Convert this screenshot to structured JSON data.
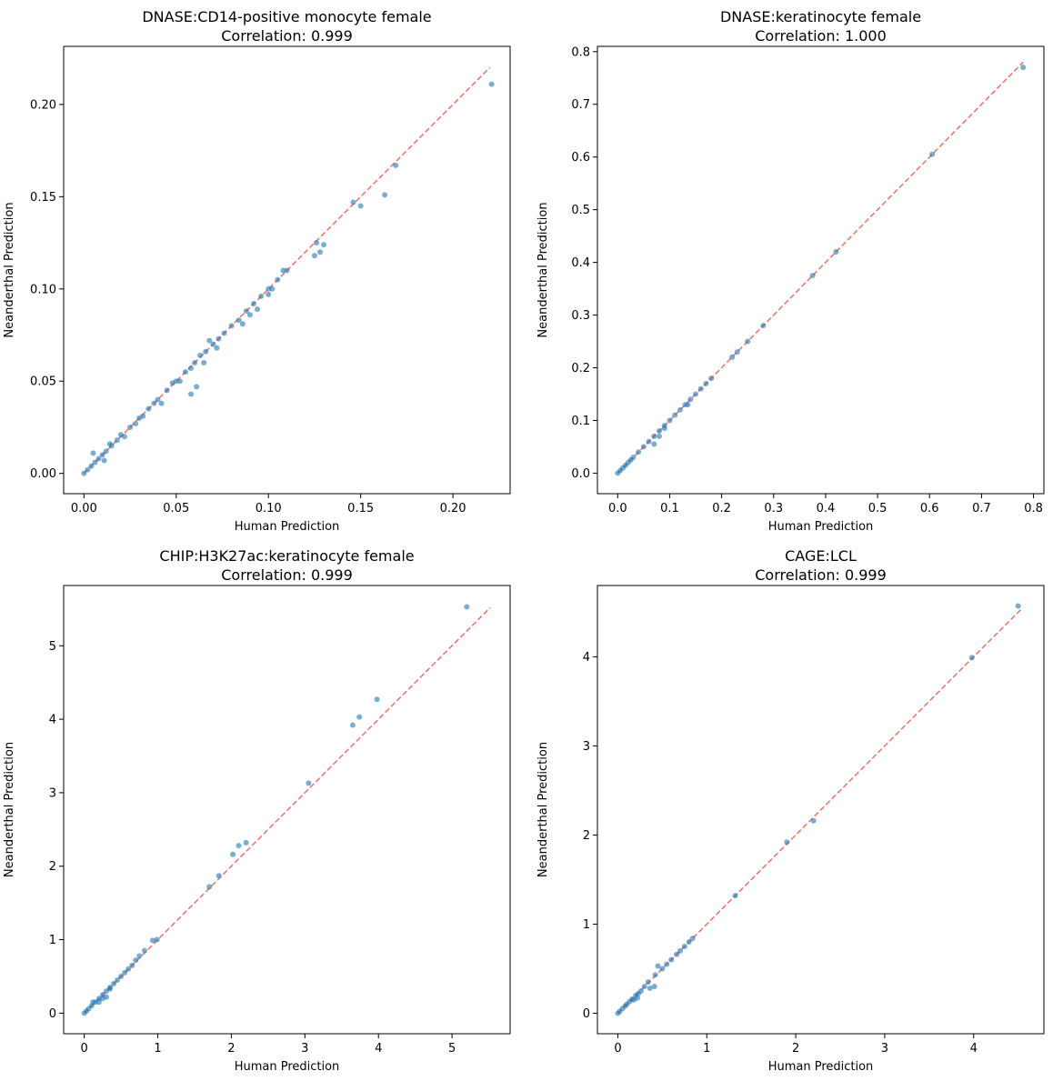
{
  "chart_data": [
    {
      "type": "scatter",
      "title": "DNASE:CD14-positive monocyte female",
      "subtitle": "Correlation: 0.999",
      "xlabel": "Human Prediction",
      "ylabel": "Neanderthal Prediction",
      "xlim": [
        -0.011,
        0.231
      ],
      "ylim": [
        -0.011,
        0.2315
      ],
      "xticks": [
        0.0,
        0.05,
        0.1,
        0.15,
        0.2
      ],
      "yticks": [
        0.0,
        0.05,
        0.1,
        0.15,
        0.2
      ],
      "xtick_labels": [
        "0.00",
        "0.05",
        "0.10",
        "0.15",
        "0.20"
      ],
      "ytick_labels": [
        "0.00",
        "0.05",
        "0.10",
        "0.15",
        "0.20"
      ],
      "reference_line": [
        0.0,
        0.22
      ],
      "series": [
        {
          "points": [
            [
              0.0,
              0.0
            ],
            [
              0.002,
              0.002
            ],
            [
              0.004,
              0.004
            ],
            [
              0.006,
              0.006
            ],
            [
              0.008,
              0.008
            ],
            [
              0.01,
              0.01
            ],
            [
              0.012,
              0.012
            ],
            [
              0.015,
              0.015
            ],
            [
              0.018,
              0.018
            ],
            [
              0.02,
              0.021
            ],
            [
              0.025,
              0.025
            ],
            [
              0.028,
              0.027
            ],
            [
              0.03,
              0.03
            ],
            [
              0.035,
              0.035
            ],
            [
              0.038,
              0.038
            ],
            [
              0.04,
              0.04
            ],
            [
              0.045,
              0.045
            ],
            [
              0.048,
              0.049
            ],
            [
              0.05,
              0.05
            ],
            [
              0.055,
              0.055
            ],
            [
              0.058,
              0.057
            ],
            [
              0.06,
              0.06
            ],
            [
              0.063,
              0.064
            ],
            [
              0.066,
              0.066
            ],
            [
              0.07,
              0.07
            ],
            [
              0.073,
              0.073
            ],
            [
              0.076,
              0.076
            ],
            [
              0.08,
              0.08
            ],
            [
              0.084,
              0.083
            ],
            [
              0.088,
              0.088
            ],
            [
              0.092,
              0.092
            ],
            [
              0.096,
              0.096
            ],
            [
              0.1,
              0.1
            ],
            [
              0.105,
              0.105
            ],
            [
              0.11,
              0.11
            ],
            [
              0.005,
              0.011
            ],
            [
              0.011,
              0.007
            ],
            [
              0.014,
              0.016
            ],
            [
              0.022,
              0.02
            ],
            [
              0.032,
              0.031
            ],
            [
              0.042,
              0.038
            ],
            [
              0.052,
              0.05
            ],
            [
              0.058,
              0.043
            ],
            [
              0.061,
              0.047
            ],
            [
              0.065,
              0.06
            ],
            [
              0.068,
              0.072
            ],
            [
              0.072,
              0.068
            ],
            [
              0.086,
              0.081
            ],
            [
              0.09,
              0.086
            ],
            [
              0.094,
              0.089
            ],
            [
              0.1,
              0.097
            ],
            [
              0.108,
              0.11
            ],
            [
              0.102,
              0.1
            ],
            [
              0.125,
              0.118
            ],
            [
              0.128,
              0.12
            ],
            [
              0.13,
              0.124
            ],
            [
              0.126,
              0.125
            ],
            [
              0.146,
              0.147
            ],
            [
              0.15,
              0.145
            ],
            [
              0.163,
              0.151
            ],
            [
              0.169,
              0.167
            ],
            [
              0.221,
              0.211
            ]
          ]
        }
      ]
    },
    {
      "type": "scatter",
      "title": "DNASE:keratinocyte female",
      "subtitle": "Correlation: 1.000",
      "xlabel": "Human Prediction",
      "ylabel": "Neanderthal Prediction",
      "xlim": [
        -0.039,
        0.82
      ],
      "ylim": [
        -0.039,
        0.81
      ],
      "xticks": [
        0.0,
        0.1,
        0.2,
        0.3,
        0.4,
        0.5,
        0.6,
        0.7,
        0.8
      ],
      "yticks": [
        0.0,
        0.1,
        0.2,
        0.3,
        0.4,
        0.5,
        0.6,
        0.7,
        0.8
      ],
      "xtick_labels": [
        "0.0",
        "0.1",
        "0.2",
        "0.3",
        "0.4",
        "0.5",
        "0.6",
        "0.7",
        "0.8"
      ],
      "ytick_labels": [
        "0.0",
        "0.1",
        "0.2",
        "0.3",
        "0.4",
        "0.5",
        "0.6",
        "0.7",
        "0.8"
      ],
      "reference_line": [
        0.0,
        0.78
      ],
      "series": [
        {
          "points": [
            [
              0.0,
              0.0
            ],
            [
              0.005,
              0.005
            ],
            [
              0.01,
              0.01
            ],
            [
              0.015,
              0.015
            ],
            [
              0.02,
              0.02
            ],
            [
              0.025,
              0.025
            ],
            [
              0.03,
              0.03
            ],
            [
              0.04,
              0.04
            ],
            [
              0.05,
              0.05
            ],
            [
              0.06,
              0.06
            ],
            [
              0.07,
              0.07
            ],
            [
              0.08,
              0.08
            ],
            [
              0.09,
              0.09
            ],
            [
              0.1,
              0.1
            ],
            [
              0.11,
              0.11
            ],
            [
              0.12,
              0.12
            ],
            [
              0.13,
              0.13
            ],
            [
              0.14,
              0.14
            ],
            [
              0.15,
              0.15
            ],
            [
              0.16,
              0.16
            ],
            [
              0.17,
              0.17
            ],
            [
              0.18,
              0.18
            ],
            [
              0.07,
              0.055
            ],
            [
              0.08,
              0.07
            ],
            [
              0.09,
              0.085
            ],
            [
              0.135,
              0.13
            ],
            [
              0.22,
              0.22
            ],
            [
              0.23,
              0.23
            ],
            [
              0.25,
              0.25
            ],
            [
              0.28,
              0.28
            ],
            [
              0.375,
              0.375
            ],
            [
              0.42,
              0.42
            ],
            [
              0.605,
              0.605
            ],
            [
              0.78,
              0.77
            ]
          ]
        }
      ]
    },
    {
      "type": "scatter",
      "title": "CHIP:H3K27ac:keratinocyte female",
      "subtitle": "Correlation: 0.999",
      "xlabel": "Human Prediction",
      "ylabel": "Neanderthal Prediction",
      "xlim": [
        -0.28,
        5.79
      ],
      "ylim": [
        -0.28,
        5.82
      ],
      "xticks": [
        0,
        1,
        2,
        3,
        4,
        5
      ],
      "yticks": [
        0,
        1,
        2,
        3,
        4,
        5
      ],
      "xtick_labels": [
        "0",
        "1",
        "2",
        "3",
        "4",
        "5"
      ],
      "ytick_labels": [
        "0",
        "1",
        "2",
        "3",
        "4",
        "5"
      ],
      "reference_line": [
        0.0,
        5.52
      ],
      "series": [
        {
          "points": [
            [
              0.0,
              0.0
            ],
            [
              0.03,
              0.03
            ],
            [
              0.06,
              0.06
            ],
            [
              0.1,
              0.1
            ],
            [
              0.15,
              0.15
            ],
            [
              0.2,
              0.2
            ],
            [
              0.25,
              0.25
            ],
            [
              0.3,
              0.3
            ],
            [
              0.35,
              0.35
            ],
            [
              0.4,
              0.4
            ],
            [
              0.45,
              0.45
            ],
            [
              0.5,
              0.5
            ],
            [
              0.55,
              0.55
            ],
            [
              0.6,
              0.6
            ],
            [
              0.65,
              0.65
            ],
            [
              0.2,
              0.15
            ],
            [
              0.25,
              0.2
            ],
            [
              0.3,
              0.22
            ],
            [
              0.12,
              0.15
            ],
            [
              0.35,
              0.33
            ],
            [
              0.7,
              0.72
            ],
            [
              0.75,
              0.78
            ],
            [
              0.82,
              0.85
            ],
            [
              0.93,
              0.99
            ],
            [
              0.99,
              1.0
            ],
            [
              1.7,
              1.72
            ],
            [
              1.83,
              1.87
            ],
            [
              2.02,
              2.16
            ],
            [
              2.1,
              2.28
            ],
            [
              2.2,
              2.32
            ],
            [
              3.05,
              3.13
            ],
            [
              3.65,
              3.92
            ],
            [
              3.74,
              4.03
            ],
            [
              3.98,
              4.27
            ],
            [
              5.2,
              5.53
            ]
          ]
        }
      ]
    },
    {
      "type": "scatter",
      "title": "CAGE:LCL",
      "subtitle": "Correlation: 0.999",
      "xlabel": "Human Prediction",
      "ylabel": "Neanderthal Prediction",
      "xlim": [
        -0.23,
        4.79
      ],
      "ylim": [
        -0.23,
        4.8
      ],
      "xticks": [
        0,
        1,
        2,
        3,
        4
      ],
      "yticks": [
        0,
        1,
        2,
        3,
        4
      ],
      "xtick_labels": [
        "0",
        "1",
        "2",
        "3",
        "4"
      ],
      "ytick_labels": [
        "0",
        "1",
        "2",
        "3",
        "4"
      ],
      "reference_line": [
        0.0,
        4.55
      ],
      "series": [
        {
          "points": [
            [
              0.0,
              0.0
            ],
            [
              0.02,
              0.02
            ],
            [
              0.05,
              0.05
            ],
            [
              0.08,
              0.08
            ],
            [
              0.1,
              0.1
            ],
            [
              0.13,
              0.13
            ],
            [
              0.16,
              0.16
            ],
            [
              0.2,
              0.2
            ],
            [
              0.23,
              0.22
            ],
            [
              0.26,
              0.25
            ],
            [
              0.3,
              0.3
            ],
            [
              0.34,
              0.35
            ],
            [
              0.18,
              0.15
            ],
            [
              0.22,
              0.17
            ],
            [
              0.36,
              0.28
            ],
            [
              0.41,
              0.3
            ],
            [
              0.45,
              0.53
            ],
            [
              0.5,
              0.5
            ],
            [
              0.55,
              0.55
            ],
            [
              0.6,
              0.6
            ],
            [
              0.66,
              0.66
            ],
            [
              0.7,
              0.7
            ],
            [
              0.75,
              0.75
            ],
            [
              0.8,
              0.8
            ],
            [
              0.84,
              0.84
            ],
            [
              0.42,
              0.43
            ],
            [
              1.32,
              1.32
            ],
            [
              1.9,
              1.92
            ],
            [
              2.2,
              2.16
            ],
            [
              3.98,
              3.99
            ],
            [
              4.5,
              4.57
            ]
          ]
        }
      ]
    }
  ],
  "style": {
    "point_color": "#1f77b4",
    "reference_line_color": "#ef5f55",
    "axis_color": "#000000"
  }
}
